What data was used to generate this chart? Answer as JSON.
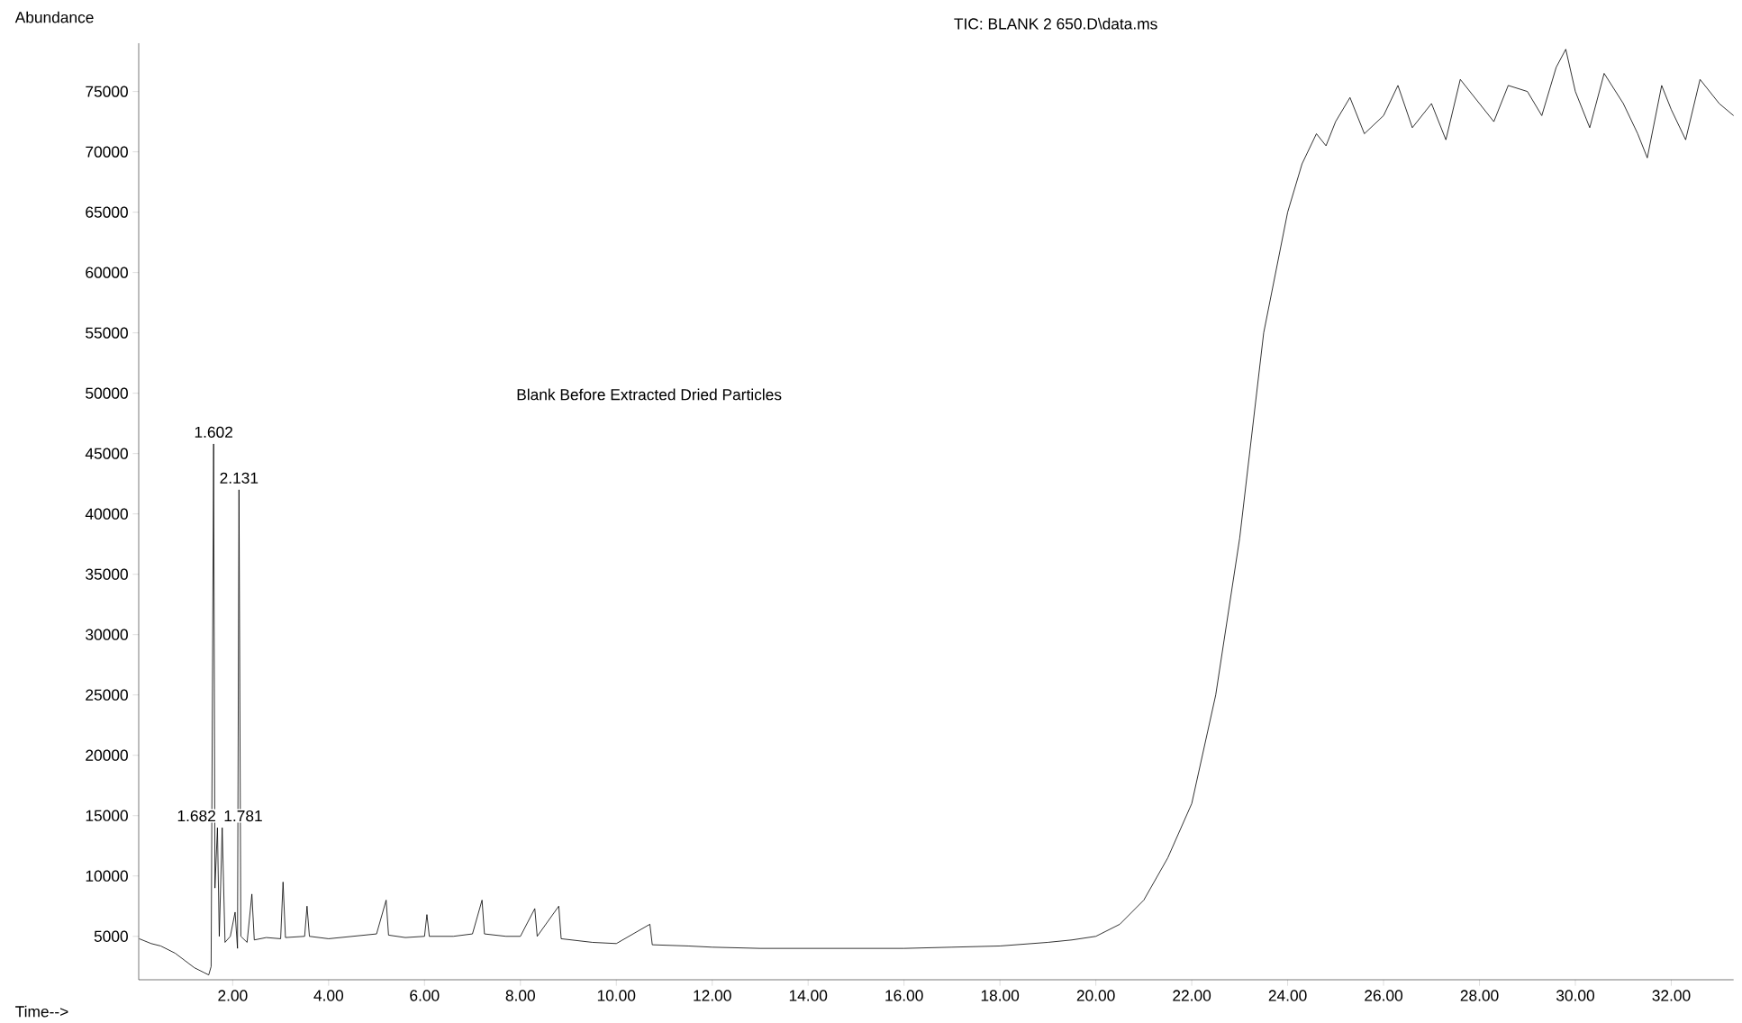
{
  "chart_data": {
    "type": "line",
    "title": "TIC: BLANK 2 650.D\\data.ms",
    "xlabel": "Time-->",
    "ylabel": "Abundance",
    "annotations": [
      "Blank Before Extracted Dried Particles",
      {
        "text": "1.602",
        "x": 1.602,
        "y": 45800
      },
      {
        "text": "2.131",
        "x": 2.131,
        "y": 42000
      },
      {
        "text": "1.682",
        "x": 1.682,
        "y": 14000
      },
      {
        "text": "1.781",
        "x": 1.781,
        "y": 14000
      }
    ],
    "xlim": [
      0.04,
      33.3
    ],
    "ylim": [
      1400,
      79000
    ],
    "xticks": [
      {
        "value": 2,
        "label": "2.00"
      },
      {
        "value": 4,
        "label": "4.00"
      },
      {
        "value": 6,
        "label": "6.00"
      },
      {
        "value": 8,
        "label": "8.00"
      },
      {
        "value": 10,
        "label": "10.00"
      },
      {
        "value": 12,
        "label": "12.00"
      },
      {
        "value": 14,
        "label": "14.00"
      },
      {
        "value": 16,
        "label": "16.00"
      },
      {
        "value": 18,
        "label": "18.00"
      },
      {
        "value": 20,
        "label": "20.00"
      },
      {
        "value": 22,
        "label": "22.00"
      },
      {
        "value": 24,
        "label": "24.00"
      },
      {
        "value": 26,
        "label": "26.00"
      },
      {
        "value": 28,
        "label": "28.00"
      },
      {
        "value": 30,
        "label": "30.00"
      },
      {
        "value": 32,
        "label": "32.00"
      }
    ],
    "yticks": [
      5000,
      10000,
      15000,
      20000,
      25000,
      30000,
      35000,
      40000,
      45000,
      50000,
      55000,
      60000,
      65000,
      70000,
      75000
    ],
    "grid": false,
    "marker": "none",
    "line_style": "solid",
    "series": [
      {
        "color": "#000000",
        "x": [
          0.05,
          0.3,
          0.5,
          0.8,
          1.0,
          1.2,
          1.4,
          1.5,
          1.55,
          1.602,
          1.63,
          1.682,
          1.72,
          1.781,
          1.84,
          1.95,
          2.05,
          2.1,
          2.131,
          2.17,
          2.3,
          2.4,
          2.45,
          2.7,
          3.0,
          3.05,
          3.1,
          3.5,
          3.55,
          3.6,
          4.0,
          4.5,
          5.0,
          5.2,
          5.25,
          5.6,
          6.0,
          6.05,
          6.1,
          6.6,
          7.0,
          7.2,
          7.25,
          7.7,
          8.0,
          8.3,
          8.35,
          8.8,
          8.85,
          9.5,
          10.0,
          10.7,
          10.75,
          11.5,
          12.0,
          13.0,
          14.0,
          15.0,
          16.0,
          17.0,
          18.0,
          19.0,
          19.5,
          20.0,
          20.5,
          21.0,
          21.5,
          22.0,
          22.5,
          23.0,
          23.5,
          24.0,
          24.3,
          24.6,
          24.8,
          25.0,
          25.3,
          25.6,
          26.0,
          26.3,
          26.6,
          27.0,
          27.3,
          27.6,
          28.0,
          28.3,
          28.6,
          29.0,
          29.3,
          29.6,
          29.8,
          30.0,
          30.3,
          30.6,
          31.0,
          31.3,
          31.5,
          31.8,
          32.0,
          32.3,
          32.6,
          33.0,
          33.3
        ],
        "values": [
          4800,
          4400,
          4200,
          3600,
          3000,
          2400,
          2000,
          1800,
          2500,
          45800,
          9000,
          14000,
          5000,
          14000,
          4500,
          5000,
          7000,
          4000,
          42000,
          5000,
          4500,
          8500,
          4700,
          4900,
          4800,
          9500,
          4900,
          5000,
          7500,
          5000,
          4800,
          5000,
          5200,
          8000,
          5100,
          4900,
          5000,
          6800,
          5000,
          5000,
          5200,
          8000,
          5200,
          5000,
          5000,
          7300,
          5000,
          7500,
          4800,
          4500,
          4400,
          6000,
          4300,
          4200,
          4100,
          4000,
          4000,
          4000,
          4000,
          4100,
          4200,
          4500,
          4700,
          5000,
          6000,
          8000,
          11500,
          16000,
          25000,
          38000,
          55000,
          65000,
          69000,
          71500,
          70500,
          72500,
          74500,
          71500,
          73000,
          75500,
          72000,
          74000,
          71000,
          76000,
          74000,
          72500,
          75500,
          75000,
          73000,
          77000,
          78500,
          75000,
          72000,
          76500,
          74000,
          71500,
          69500,
          75500,
          73500,
          71000,
          76000,
          74000,
          73000
        ]
      }
    ]
  }
}
